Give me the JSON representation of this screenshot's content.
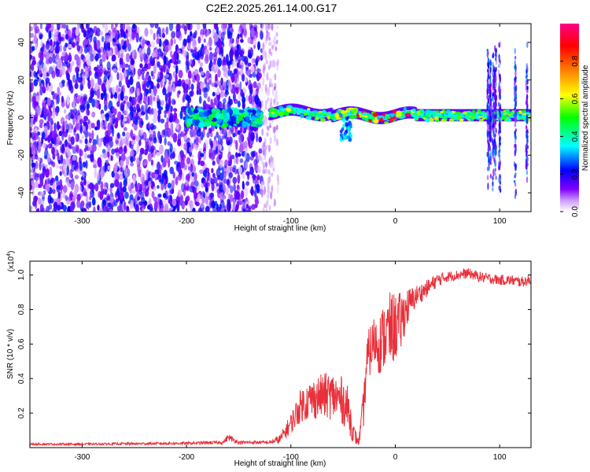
{
  "title": "C2E2.2025.261.14.00.G17",
  "chart_data": [
    {
      "type": "heatmap",
      "xlabel": "Height of straight line (km)",
      "ylabel": "Frequency (Hz)",
      "xlim": [
        -350,
        130
      ],
      "ylim": [
        -50,
        50
      ],
      "x_ticks": [
        -300,
        -200,
        -100,
        0,
        100
      ],
      "y_ticks": [
        -40,
        -20,
        0,
        20,
        40
      ],
      "colorbar": {
        "label": "Normalized spectral amplitude",
        "range": [
          0,
          1
        ],
        "ticks": [
          0.0,
          0.2,
          0.4,
          0.6,
          0.8
        ],
        "tick_labels": [
          "0.0",
          "0.2",
          "0.4",
          "0.6",
          "0.8"
        ],
        "colors": [
          "#ffffff",
          "#cc99ff",
          "#7f00ff",
          "#0000ff",
          "#00ffff",
          "#00ff00",
          "#ffff00",
          "#ff7f00",
          "#ff0000",
          "#ff0088"
        ]
      },
      "regions": [
        {
          "name": "noise",
          "x": [
            -350,
            -128
          ],
          "freq": [
            -50,
            50
          ],
          "amplitude": 0.15
        },
        {
          "name": "noise-fringe",
          "x": [
            -128,
            -112
          ],
          "freq": [
            -50,
            50
          ],
          "amplitude": 0.06
        },
        {
          "name": "noise-band",
          "x": [
            -200,
            -128
          ],
          "freq": [
            -4,
            4
          ],
          "amplitude": 0.3
        },
        {
          "name": "signal-band",
          "x": [
            -120,
            130
          ],
          "center_freq": 1,
          "amplitude": 0.45
        },
        {
          "name": "signal-spur",
          "x": [
            -52,
            -42
          ],
          "freq": [
            -12,
            0
          ],
          "amplitude": 0.25
        },
        {
          "name": "vertical-streaks",
          "x": [
            88,
            126
          ],
          "freq": [
            -50,
            50
          ],
          "amplitude": 0.18
        }
      ]
    },
    {
      "type": "line",
      "xlabel": "Height of straight line (km)",
      "ylabel": "SNR (10 * v/v)",
      "y_scale_label": "(x10",
      "y_scale_exponent": "4",
      "y_scale_suffix": ")",
      "xlim": [
        -350,
        130
      ],
      "ylim": [
        0,
        1.08
      ],
      "x_ticks": [
        -300,
        -200,
        -100,
        0,
        100
      ],
      "y_ticks": [
        0.2,
        0.4,
        0.6,
        0.8,
        1.0
      ],
      "series": [
        {
          "name": "SNR",
          "color": "#e8303a",
          "x": [
            -350,
            -300,
            -200,
            -165,
            -160,
            -150,
            -120,
            -110,
            -100,
            -90,
            -80,
            -70,
            -60,
            -50,
            -45,
            -40,
            -35,
            -30,
            -28,
            -25,
            -20,
            -15,
            -10,
            -5,
            0,
            5,
            10,
            20,
            30,
            40,
            50,
            60,
            70,
            80,
            90,
            100,
            110,
            120,
            130
          ],
          "y": [
            0.02,
            0.02,
            0.025,
            0.03,
            0.06,
            0.03,
            0.03,
            0.05,
            0.14,
            0.25,
            0.28,
            0.3,
            0.3,
            0.27,
            0.22,
            0.08,
            0.03,
            0.25,
            0.45,
            0.55,
            0.62,
            0.6,
            0.65,
            0.68,
            0.7,
            0.72,
            0.8,
            0.88,
            0.92,
            0.97,
            0.99,
            1.0,
            1.01,
            0.99,
            0.98,
            0.97,
            0.97,
            0.96,
            0.97
          ],
          "spread": [
            0.006,
            0.006,
            0.008,
            0.01,
            0.02,
            0.01,
            0.01,
            0.03,
            0.06,
            0.1,
            0.12,
            0.13,
            0.14,
            0.14,
            0.13,
            0.06,
            0.02,
            0.12,
            0.15,
            0.15,
            0.15,
            0.18,
            0.2,
            0.22,
            0.2,
            0.18,
            0.12,
            0.06,
            0.05,
            0.04,
            0.03,
            0.03,
            0.03,
            0.03,
            0.03,
            0.03,
            0.03,
            0.03,
            0.03
          ]
        }
      ]
    }
  ]
}
